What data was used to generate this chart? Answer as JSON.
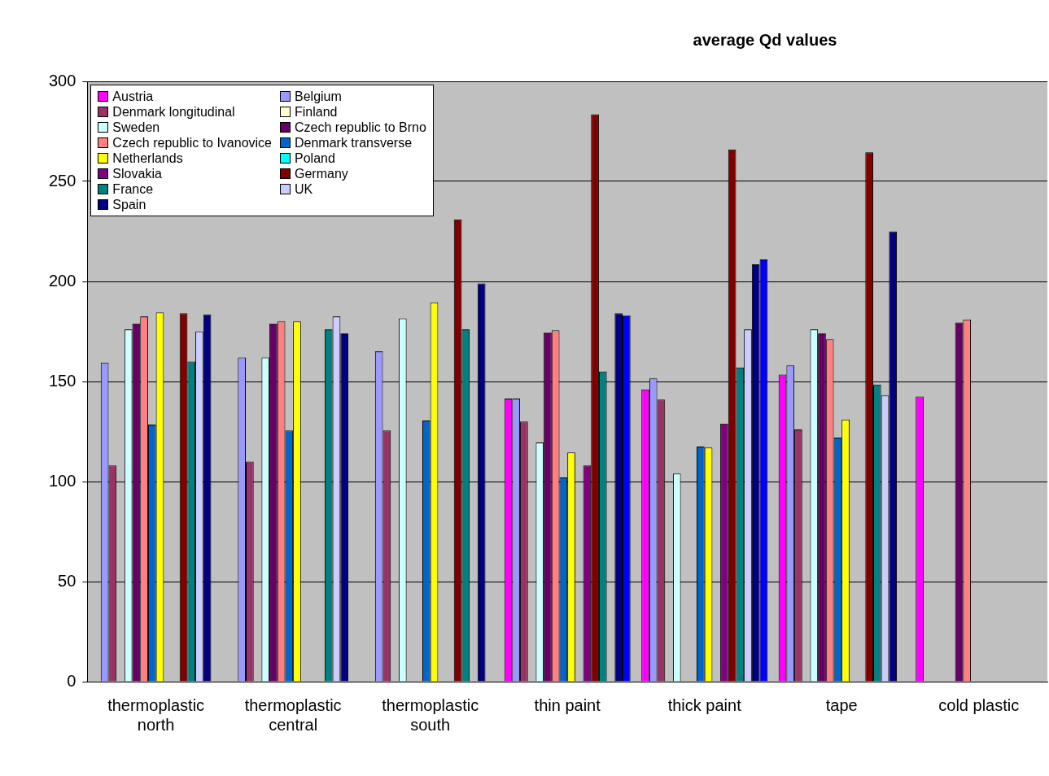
{
  "chart_data": {
    "type": "bar",
    "title": "average Qd values",
    "categories": [
      "thermoplastic north",
      "thermoplastic central",
      "thermoplastic south",
      "thin paint",
      "thick paint",
      "tape",
      "cold plastic"
    ],
    "ylim": [
      0,
      300
    ],
    "yticks": [
      0,
      50,
      100,
      150,
      200,
      250,
      300
    ],
    "grid": "y",
    "legend": "top left",
    "series": [
      {
        "name": "Austria",
        "color": "#ff00ff",
        "values": [
          null,
          null,
          null,
          141.5,
          146,
          153.5,
          142.5
        ]
      },
      {
        "name": "Belgium",
        "color": "#9999ff",
        "values": [
          159.5,
          162,
          165,
          141.5,
          151.5,
          158,
          null
        ]
      },
      {
        "name": "Denmark longitudinal",
        "color": "#993366",
        "values": [
          108,
          110,
          125.5,
          130,
          141,
          126,
          null
        ]
      },
      {
        "name": "Finland",
        "color": "#ffffcc",
        "values": [
          null,
          null,
          null,
          null,
          null,
          null,
          null
        ]
      },
      {
        "name": "Sweden",
        "color": "#ccffff",
        "values": [
          176,
          162,
          181.5,
          119.5,
          104,
          176,
          null
        ]
      },
      {
        "name": "Czech republic to Brno",
        "color": "#660066",
        "values": [
          179,
          179,
          null,
          174.5,
          null,
          174,
          179.5
        ]
      },
      {
        "name": "Czech republic to Ivanovice",
        "color": "#ff8080",
        "values": [
          182.5,
          180,
          null,
          175.5,
          null,
          171,
          181
        ]
      },
      {
        "name": "Denmark transverse",
        "color": "#0066cc",
        "values": [
          128.5,
          125.5,
          130.5,
          102,
          117.5,
          122,
          null
        ]
      },
      {
        "name": "Netherlands",
        "color": "#ffff00",
        "values": [
          184.5,
          180,
          189.5,
          114.5,
          117,
          131,
          null
        ]
      },
      {
        "name": "Poland",
        "color": "#00ffff",
        "values": [
          null,
          null,
          null,
          null,
          null,
          null,
          null
        ]
      },
      {
        "name": "Slovakia",
        "color": "#800080",
        "values": [
          null,
          null,
          null,
          108,
          129,
          null,
          null
        ]
      },
      {
        "name": "Germany",
        "color": "#800000",
        "values": [
          184,
          null,
          231,
          283.5,
          266,
          264.5,
          null
        ]
      },
      {
        "name": "France",
        "color": "#008080",
        "values": [
          160,
          176,
          176,
          155,
          157,
          148.5,
          null
        ]
      },
      {
        "name": "UK",
        "color": "#ccccff",
        "values": [
          175,
          182.5,
          null,
          null,
          176,
          143,
          null
        ]
      },
      {
        "name": "Spain",
        "color": "#000080",
        "values": [
          183.5,
          174,
          199,
          184,
          208.5,
          225,
          null
        ]
      },
      {
        "color": "#0000ff",
        "values": [
          null,
          null,
          null,
          183,
          211,
          null,
          null
        ]
      }
    ]
  }
}
